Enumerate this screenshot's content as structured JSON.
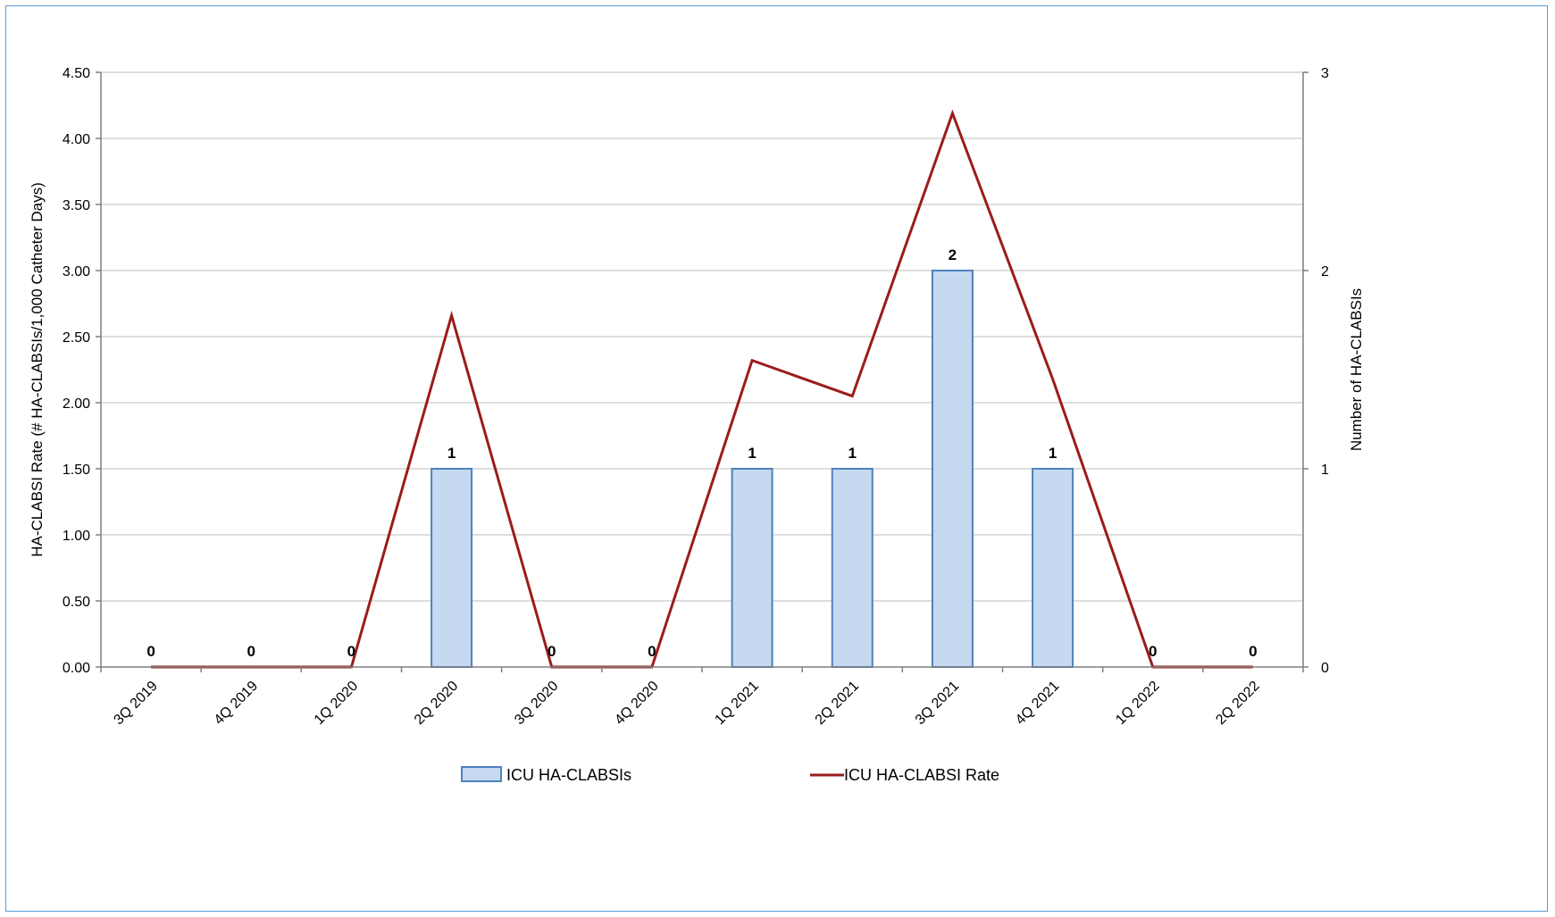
{
  "chart_data": {
    "type": "bar",
    "categories": [
      "3Q 2019",
      "4Q 2019",
      "1Q 2020",
      "2Q 2020",
      "3Q 2020",
      "4Q 2020",
      "1Q 2021",
      "2Q 2021",
      "3Q 2021",
      "4Q 2021",
      "1Q 2022",
      "2Q 2022"
    ],
    "series": [
      {
        "name": "ICU HA-CLABSIs",
        "type": "bar",
        "axis": "right",
        "values": [
          0,
          0,
          0,
          1,
          0,
          0,
          1,
          1,
          2,
          1,
          0,
          0
        ],
        "data_labels": [
          "0",
          "0",
          "0",
          "1",
          "0",
          "0",
          "1",
          "1",
          "2",
          "1",
          "0",
          "0"
        ],
        "color": "#c5d9f1",
        "border_color": "#4f81bd"
      },
      {
        "name": "ICU HA-CLABSI Rate",
        "type": "line",
        "axis": "left",
        "values": [
          0,
          0,
          0,
          2.66,
          0,
          0,
          2.32,
          2.05,
          4.19,
          2.18,
          0,
          0
        ],
        "color": "#9b1c1c"
      }
    ],
    "ylabel": "HA-CLABSI Rate (# HA-CLABSIs/1,000 Catheter Days)",
    "y2label": "Number of HA-CLABSIs",
    "ylim": [
      0,
      4.5
    ],
    "yticks": [
      "0.00",
      "0.50",
      "1.00",
      "1.50",
      "2.00",
      "2.50",
      "3.00",
      "3.50",
      "4.00",
      "4.50"
    ],
    "y2lim": [
      0,
      3
    ],
    "y2ticks": [
      "0",
      "1",
      "2",
      "3"
    ],
    "grid": true,
    "legend": {
      "placement": "bottom",
      "entries": [
        "ICU HA-CLABSIs",
        "ICU HA-CLABSI Rate"
      ]
    }
  }
}
